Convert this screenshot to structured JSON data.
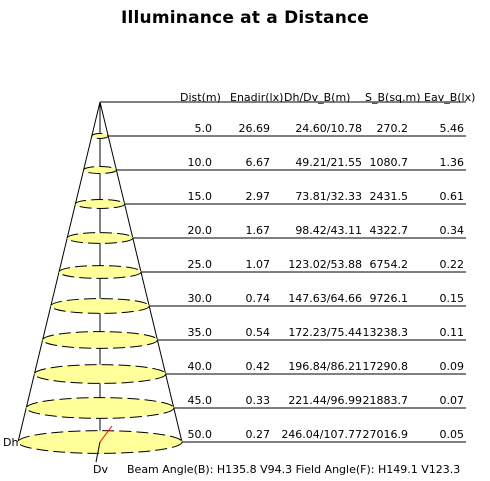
{
  "title": "Illuminance at a Distance",
  "headers": [
    "Dist(m)",
    "Enadir(lx)",
    "Dh/Dv_B(m)",
    "S_B(sq.m)",
    "Eav_B(lx)"
  ],
  "rows": [
    {
      "dist": "5.0",
      "enadir": "26.69",
      "dhdv": "24.60/10.78",
      "area": "270.2",
      "eav": "5.46"
    },
    {
      "dist": "10.0",
      "enadir": "6.67",
      "dhdv": "49.21/21.55",
      "area": "1080.7",
      "eav": "1.36"
    },
    {
      "dist": "15.0",
      "enadir": "2.97",
      "dhdv": "73.81/32.33",
      "area": "2431.5",
      "eav": "0.61"
    },
    {
      "dist": "20.0",
      "enadir": "1.67",
      "dhdv": "98.42/43.11",
      "area": "4322.7",
      "eav": "0.34"
    },
    {
      "dist": "25.0",
      "enadir": "1.07",
      "dhdv": "123.02/53.88",
      "area": "6754.2",
      "eav": "0.22"
    },
    {
      "dist": "30.0",
      "enadir": "0.74",
      "dhdv": "147.63/64.66",
      "area": "9726.1",
      "eav": "0.15"
    },
    {
      "dist": "35.0",
      "enadir": "0.54",
      "dhdv": "172.23/75.44",
      "area": "13238.3",
      "eav": "0.11"
    },
    {
      "dist": "40.0",
      "enadir": "0.42",
      "dhdv": "196.84/86.21",
      "area": "17290.8",
      "eav": "0.09"
    },
    {
      "dist": "45.0",
      "enadir": "0.33",
      "dhdv": "221.44/96.99",
      "area": "21883.7",
      "eav": "0.07"
    },
    {
      "dist": "50.0",
      "enadir": "0.27",
      "dhdv": "246.04/107.77",
      "area": "27016.9",
      "eav": "0.05"
    }
  ],
  "labels": {
    "dh": "Dh",
    "dv": "Dv"
  },
  "footer": "Beam Angle(B): H135.8 V94.3  Field Angle(F): H149.1 V123.3",
  "colors": {
    "ellipse_fill": "#ffff99",
    "ellipse_stroke": "#000000",
    "radius_line": "#ff0000"
  }
}
